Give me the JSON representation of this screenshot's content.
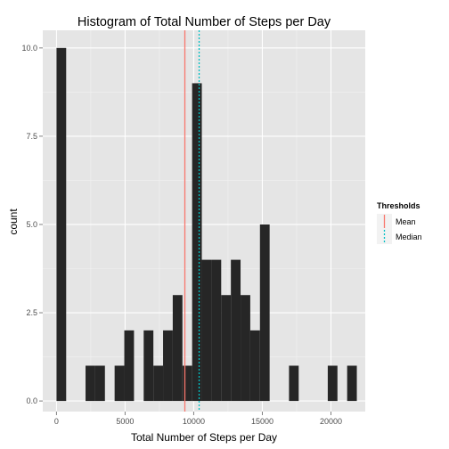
{
  "chart_data": {
    "type": "bar",
    "title": "Histogram of Total Number of Steps per Day",
    "xlabel": "Total Number of Steps per Day",
    "ylabel": "count",
    "xlim": [
      -1000,
      22500
    ],
    "ylim": [
      -0.3,
      10.5
    ],
    "x_ticks": [
      0,
      5000,
      10000,
      15000,
      20000
    ],
    "x_tick_labels": [
      "0",
      "5000",
      "10000",
      "15000",
      "20000"
    ],
    "y_ticks": [
      0,
      2.5,
      5,
      7.5,
      10
    ],
    "y_tick_labels": [
      "0.0",
      "2.5",
      "5.0",
      "7.5",
      "10.0"
    ],
    "grid": true,
    "background": "#e5e5e5",
    "bar_color": "#262626",
    "bins": [
      {
        "x0": 0,
        "x1": 706,
        "count": 10
      },
      {
        "x0": 2118,
        "x1": 2824,
        "count": 1
      },
      {
        "x0": 2824,
        "x1": 3530,
        "count": 1
      },
      {
        "x0": 4236,
        "x1": 4942,
        "count": 1
      },
      {
        "x0": 4942,
        "x1": 5648,
        "count": 2
      },
      {
        "x0": 6354,
        "x1": 7060,
        "count": 2
      },
      {
        "x0": 7060,
        "x1": 7766,
        "count": 1
      },
      {
        "x0": 7766,
        "x1": 8472,
        "count": 2
      },
      {
        "x0": 8472,
        "x1": 9178,
        "count": 3
      },
      {
        "x0": 9178,
        "x1": 9884,
        "count": 1
      },
      {
        "x0": 9884,
        "x1": 10590,
        "count": 9
      },
      {
        "x0": 10590,
        "x1": 11296,
        "count": 4
      },
      {
        "x0": 11296,
        "x1": 12002,
        "count": 4
      },
      {
        "x0": 12002,
        "x1": 12708,
        "count": 3
      },
      {
        "x0": 12708,
        "x1": 13414,
        "count": 4
      },
      {
        "x0": 13414,
        "x1": 14120,
        "count": 3
      },
      {
        "x0": 14120,
        "x1": 14826,
        "count": 2
      },
      {
        "x0": 14826,
        "x1": 15532,
        "count": 5
      },
      {
        "x0": 16944,
        "x1": 17650,
        "count": 1
      },
      {
        "x0": 19768,
        "x1": 20474,
        "count": 1
      },
      {
        "x0": 21180,
        "x1": 21886,
        "count": 1
      }
    ],
    "thresholds": [
      {
        "name": "Mean",
        "value": 9354,
        "color": "#f8766d",
        "dash": "solid"
      },
      {
        "name": "Median",
        "value": 10395,
        "color": "#00bfc4",
        "dash": "dotted"
      }
    ],
    "legend": {
      "title": "Thresholds",
      "placement": "right"
    }
  }
}
